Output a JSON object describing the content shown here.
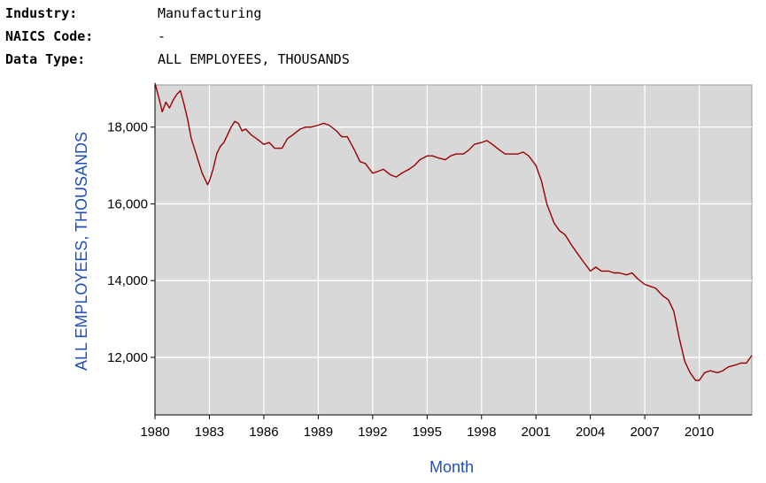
{
  "header": {
    "rows": [
      {
        "key": "Industry:",
        "value": "Manufacturing"
      },
      {
        "key": "NAICS Code:",
        "value": "-"
      },
      {
        "key": "Data Type:",
        "value": "ALL EMPLOYEES, THOUSANDS"
      }
    ]
  },
  "chart_data": {
    "type": "line",
    "title": "",
    "xlabel": "Month",
    "ylabel": "ALL EMPLOYEES, THOUSANDS",
    "xlim": [
      1980,
      2012.9
    ],
    "ylim": [
      10500,
      19100
    ],
    "x_ticks": [
      "1980",
      "1983",
      "1986",
      "1989",
      "1992",
      "1995",
      "1998",
      "2001",
      "2004",
      "2007",
      "2010"
    ],
    "y_ticks": [
      "12,000",
      "14,000",
      "16,000",
      "18,000"
    ],
    "grid": true,
    "legend": "none",
    "colors": {
      "line": "#990000",
      "plot_bg": "#d8d8d8",
      "grid": "#ffffff",
      "axis_title": "#1f4fbf"
    },
    "series": [
      {
        "x": [
          1980.0,
          1980.25,
          1980.4,
          1980.6,
          1980.8,
          1981.0,
          1981.2,
          1981.4,
          1981.6,
          1981.8,
          1982.0,
          1982.2,
          1982.4,
          1982.6,
          1982.8,
          1982.9,
          1983.0,
          1983.2,
          1983.4,
          1983.6,
          1983.8,
          1984.0,
          1984.2,
          1984.4,
          1984.6,
          1984.8,
          1985.0,
          1985.3,
          1985.6,
          1986.0,
          1986.3,
          1986.6,
          1987.0,
          1987.3,
          1987.6,
          1988.0,
          1988.3,
          1988.6,
          1989.0,
          1989.3,
          1989.6,
          1990.0,
          1990.3,
          1990.6,
          1991.0,
          1991.3,
          1991.6,
          1992.0,
          1992.3,
          1992.6,
          1993.0,
          1993.3,
          1993.6,
          1994.0,
          1994.3,
          1994.6,
          1995.0,
          1995.3,
          1995.6,
          1996.0,
          1996.3,
          1996.6,
          1997.0,
          1997.3,
          1997.6,
          1998.0,
          1998.3,
          1998.6,
          1999.0,
          1999.3,
          1999.6,
          2000.0,
          2000.3,
          2000.6,
          2001.0,
          2001.3,
          2001.6,
          2002.0,
          2002.3,
          2002.6,
          2003.0,
          2003.3,
          2003.6,
          2004.0,
          2004.3,
          2004.6,
          2005.0,
          2005.3,
          2005.6,
          2006.0,
          2006.3,
          2006.6,
          2007.0,
          2007.3,
          2007.6,
          2008.0,
          2008.3,
          2008.6,
          2008.9,
          2009.2,
          2009.5,
          2009.8,
          2010.0,
          2010.3,
          2010.6,
          2011.0,
          2011.3,
          2011.6,
          2012.0,
          2012.3,
          2012.6,
          2012.9
        ],
        "y": [
          19150,
          18700,
          18400,
          18650,
          18500,
          18700,
          18850,
          18950,
          18600,
          18200,
          17700,
          17400,
          17100,
          16800,
          16600,
          16500,
          16600,
          16900,
          17300,
          17500,
          17600,
          17800,
          18000,
          18150,
          18100,
          17900,
          17950,
          17800,
          17700,
          17550,
          17600,
          17450,
          17450,
          17700,
          17800,
          17950,
          18000,
          18000,
          18050,
          18100,
          18050,
          17900,
          17750,
          17750,
          17400,
          17100,
          17050,
          16800,
          16850,
          16900,
          16750,
          16700,
          16800,
          16900,
          17000,
          17150,
          17250,
          17250,
          17200,
          17150,
          17250,
          17300,
          17300,
          17400,
          17550,
          17600,
          17650,
          17550,
          17400,
          17300,
          17300,
          17300,
          17350,
          17250,
          17000,
          16600,
          16000,
          15500,
          15300,
          15200,
          14900,
          14700,
          14500,
          14250,
          14350,
          14250,
          14250,
          14200,
          14200,
          14150,
          14200,
          14050,
          13900,
          13850,
          13800,
          13600,
          13500,
          13200,
          12500,
          11900,
          11600,
          11400,
          11400,
          11600,
          11650,
          11600,
          11650,
          11750,
          11800,
          11850,
          11850,
          12050
        ]
      }
    ]
  }
}
